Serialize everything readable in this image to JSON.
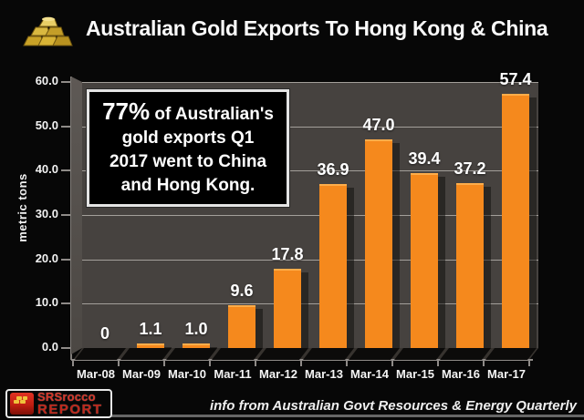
{
  "header": {
    "title": "Australian Gold Exports To Hong Kong & China"
  },
  "annotation": {
    "lead": "77%",
    "line1_rest": " of Australian's",
    "lines": [
      "gold exports Q1",
      "2017 went to China",
      "and Hong Kong."
    ]
  },
  "chart_data": {
    "type": "bar",
    "title": "Australian Gold Exports To Hong Kong & China",
    "categories": [
      "Mar-08",
      "Mar-09",
      "Mar-10",
      "Mar-11",
      "Mar-12",
      "Mar-13",
      "Mar-14",
      "Mar-15",
      "Mar-16",
      "Mar-17"
    ],
    "values": [
      0,
      1.1,
      1.0,
      9.6,
      17.8,
      36.9,
      47.0,
      39.4,
      37.2,
      57.4
    ],
    "value_labels": [
      "0",
      "1.1",
      "1.0",
      "9.6",
      "17.8",
      "36.9",
      "47.0",
      "39.4",
      "37.2",
      "57.4"
    ],
    "xlabel": "",
    "ylabel": "metric tons",
    "ylim": [
      0,
      60
    ],
    "ytick_step": 10,
    "ytick_decimals": 1,
    "grid": true,
    "legend": false,
    "colors": {
      "bar": "#F5891D",
      "bar_highlight": "#FFAD4A",
      "wall": "#46423F",
      "gridline": "#BAB6B2",
      "background": "#070707",
      "label": "#FFFFFF"
    }
  },
  "footer": {
    "logo": {
      "line1": "SRSrocco",
      "line2": "REPORT"
    },
    "credit": "info from Australian Govt Resources & Energy Quarterly"
  }
}
